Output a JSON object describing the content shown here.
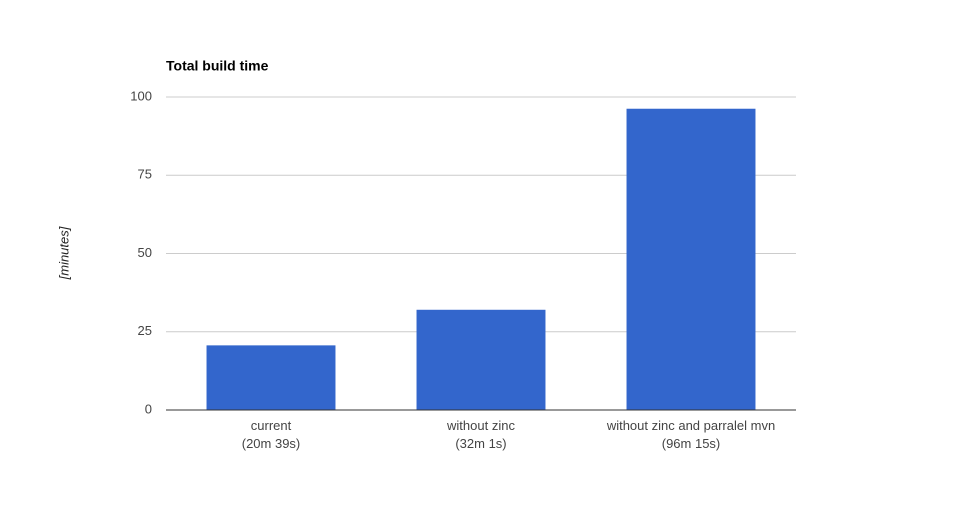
{
  "chart_data": {
    "type": "bar",
    "title": "Total build time",
    "y_label": "[minutes]",
    "categories": [
      "current\n(20m 39s)",
      "without zinc\n(32m 1s)",
      "without zinc and parralel mvn\n(96m 15s)"
    ],
    "values": [
      20.65,
      32.02,
      96.25
    ],
    "color": "#3366cc",
    "ylim": [
      0,
      100
    ],
    "yticks": [
      0,
      25,
      50,
      75,
      100
    ],
    "grid": true
  }
}
